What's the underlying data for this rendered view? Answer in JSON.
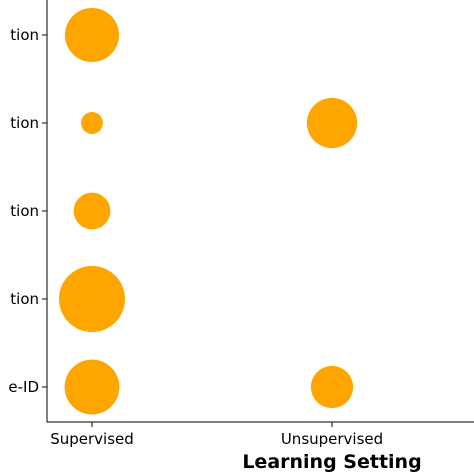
{
  "chart_data": {
    "type": "scatter",
    "title": "",
    "xlabel": "Learning Setting",
    "ylabel": "",
    "x_categories": [
      "Supervised",
      "Unsupervised"
    ],
    "y_tick_labels": [
      "tion",
      "tion",
      "tion",
      "tion",
      "e-ID"
    ],
    "grid": false,
    "legend": "none",
    "marker_color": "#FFA500",
    "points": [
      {
        "x": "Supervised",
        "row": 1,
        "relative_size": 0.67
      },
      {
        "x": "Supervised",
        "row": 2,
        "relative_size": 0.11
      },
      {
        "x": "Supervised",
        "row": 3,
        "relative_size": 0.31
      },
      {
        "x": "Supervised",
        "row": 4,
        "relative_size": 1.0
      },
      {
        "x": "Supervised",
        "row": 5,
        "relative_size": 0.69
      },
      {
        "x": "Unsupervised",
        "row": 2,
        "relative_size": 0.58
      },
      {
        "x": "Unsupervised",
        "row": 5,
        "relative_size": 0.41
      }
    ]
  }
}
